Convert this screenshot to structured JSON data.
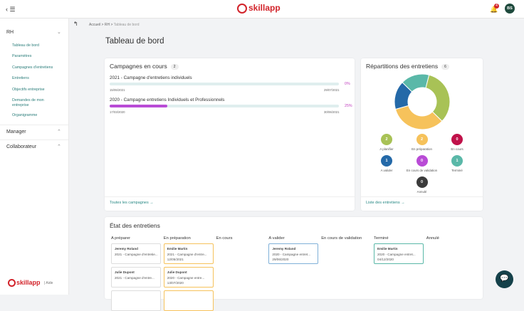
{
  "header": {
    "logo": "skillapp",
    "notification_count": "4",
    "avatar": "BS"
  },
  "sidebar": {
    "sections": [
      {
        "title": "RH",
        "items": [
          "Tableau de bord",
          "Paramètres",
          "Campagnes d'entretiens",
          "Entretiens",
          "Objectifs entreprise",
          "Demandes de mon entreprise",
          "Organigramme"
        ]
      },
      {
        "title": "Manager"
      },
      {
        "title": "Collaborateur"
      }
    ],
    "footer_logo": "skillapp",
    "help": "Aide"
  },
  "breadcrumb": [
    "Accueil",
    "RH",
    "Tableau de bord"
  ],
  "page_title": "Tableau de bord",
  "campaigns": {
    "title": "Campagnes en cours",
    "count": "2",
    "items": [
      {
        "name": "2021 - Campagne d'entretiens individuels",
        "progress": 0,
        "progress_label": "0%",
        "start": "15/06/2021",
        "end": "29/07/2021"
      },
      {
        "name": "2020 - Campagne entretiens Individuels et Professionnels",
        "progress": 25,
        "progress_label": "25%",
        "start": "17/03/2020",
        "end": "30/06/2021"
      }
    ],
    "link": "Toutes les campagnes"
  },
  "distribution": {
    "title": "Répartitions des entretiens",
    "count": "6",
    "statuses": [
      {
        "label": "A planifier",
        "count": 2,
        "color": "#a8c256"
      },
      {
        "label": "En préparation",
        "count": 2,
        "color": "#f6c25b"
      },
      {
        "label": "En cours",
        "count": 0,
        "color": "#c0124a"
      },
      {
        "label": "A valider",
        "count": 1,
        "color": "#2469a8"
      },
      {
        "label": "En cours de validation",
        "count": 0,
        "color": "#b94bd6"
      },
      {
        "label": "Terminé",
        "count": 1,
        "color": "#5ab8a8"
      },
      {
        "label": "Annulé",
        "count": 0,
        "color": "#3b3b3b"
      }
    ],
    "link": "Liste des entretiens"
  },
  "board": {
    "title": "État des entretiens",
    "columns": [
      {
        "title": "A préparer",
        "cards": [
          {
            "name": "Jeremy Roland",
            "campaign": "2021 - Campagne d'entretie..."
          },
          {
            "name": "Julie Dupont",
            "campaign": "2021 - Campagne d'entre..."
          }
        ]
      },
      {
        "title": "En préparation",
        "cards": [
          {
            "name": "Emilie Martin",
            "campaign": "2021 - Campagne d'entre...",
            "date": "12/05/2021"
          },
          {
            "name": "Julie Dupont",
            "campaign": "2020 - Campagne entre...",
            "date": "13/07/2020"
          }
        ]
      },
      {
        "title": "En cours",
        "cards": []
      },
      {
        "title": "A valider",
        "cards": [
          {
            "name": "Jeremy Roland",
            "campaign": "2020 - Campagne entret...",
            "date": "29/06/2020"
          }
        ]
      },
      {
        "title": "En cours de validation",
        "cards": []
      },
      {
        "title": "Terminé",
        "cards": [
          {
            "name": "Emilie Martin",
            "campaign": "2020 - Campagne entret...",
            "date": "04/12/2020"
          }
        ]
      },
      {
        "title": "Annulé",
        "cards": []
      }
    ]
  }
}
